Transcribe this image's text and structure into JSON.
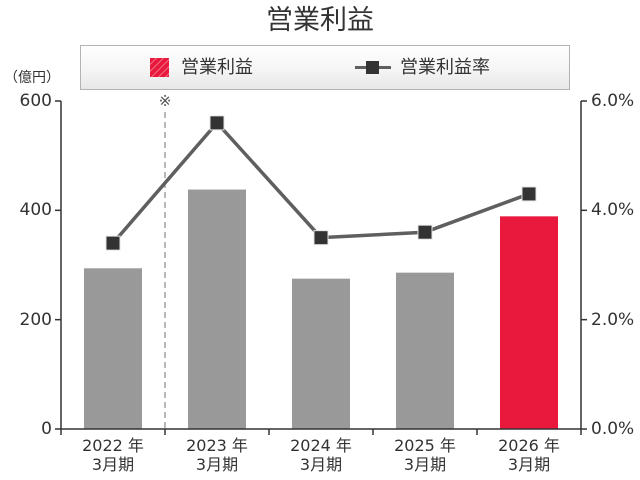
{
  "chart_data": {
    "type": "bar",
    "title": "営業利益",
    "categories": [
      "2022 年\n3月期",
      "2023 年\n3月期",
      "2024 年\n3月期",
      "2025 年\n3月期",
      "2026 年\n3月期"
    ],
    "series": [
      {
        "name": "営業利益",
        "type": "bar",
        "axis": "left",
        "values": [
          294,
          438,
          275,
          286,
          389
        ],
        "colors": [
          "#999999",
          "#999999",
          "#999999",
          "#999999",
          "#e8193c"
        ],
        "legend_color": "#e8193c"
      },
      {
        "name": "営業利益率",
        "type": "line",
        "axis": "right",
        "values": [
          3.4,
          5.6,
          3.5,
          3.6,
          4.3
        ],
        "color": "#5f5f5f",
        "marker": "square",
        "marker_color": "#333333"
      }
    ],
    "y_left": {
      "label": "（億円）",
      "ylim": [
        0,
        600
      ],
      "ticks": [
        0,
        200,
        400,
        600
      ],
      "tick_labels": [
        "0",
        "200",
        "400",
        "600"
      ]
    },
    "y_right": {
      "ylim": [
        0,
        6
      ],
      "ticks": [
        0,
        2,
        4,
        6
      ],
      "tick_labels": [
        "0.0%",
        "2.0%",
        "4.0%",
        "6.0%"
      ]
    },
    "grid": false,
    "legend_placement": "top",
    "annotations": [
      {
        "text": "※",
        "line_style": "dashed",
        "between_categories": [
          0,
          1
        ]
      }
    ]
  }
}
